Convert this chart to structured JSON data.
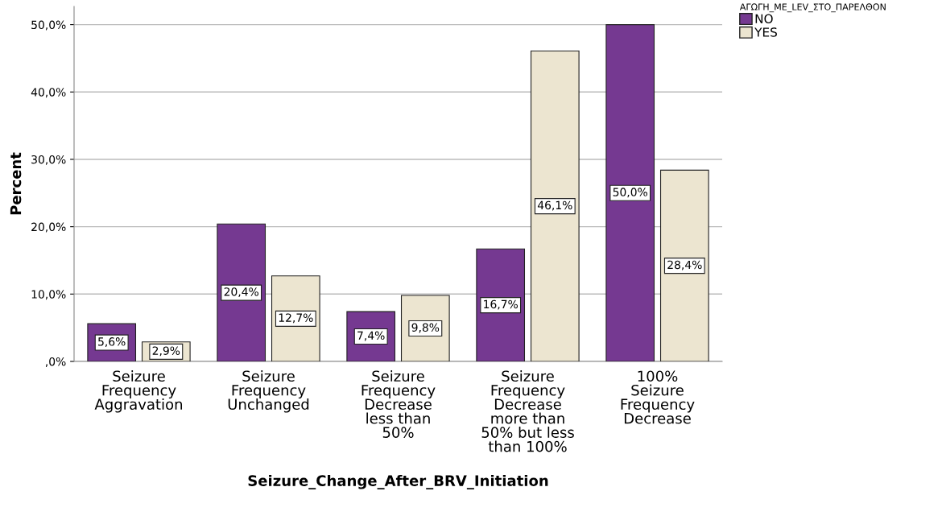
{
  "chart_data": {
    "type": "bar",
    "xlabel": "Seizure_Change_After_BRV_Initiation",
    "ylabel": "Percent",
    "legend_title": "ΑΓΩΓΗ_ΜΕ_LEV_ΣΤΟ_ΠΑΡΕΛΘΟΝ",
    "categories": [
      "Seizure\nFrequency\nAggravation",
      "Seizure\nFrequency\nUnchanged",
      "Seizure\nFrequency\nDecrease\nless than\n50%",
      "Seizure\nFrequency\nDecrease\nmore than\n50% but less\nthan 100%",
      "100%\nSeizure\nFrequency\nDecrease"
    ],
    "series": [
      {
        "name": "NO",
        "color": "#753991",
        "values": [
          5.6,
          20.4,
          7.4,
          16.7,
          50.0
        ],
        "value_labels": [
          "5,6%",
          "20,4%",
          "7,4%",
          "16,7%",
          "50,0%"
        ]
      },
      {
        "name": "YES",
        "color": "#ece5d0",
        "values": [
          2.9,
          12.7,
          9.8,
          46.1,
          28.4
        ],
        "value_labels": [
          "2,9%",
          "12,7%",
          "9,8%",
          "46,1%",
          "28,4%"
        ]
      }
    ],
    "ylim": [
      0,
      52.7
    ],
    "yticks": [
      {
        "value": 0,
        "label": ",0%"
      },
      {
        "value": 10,
        "label": "10,0%"
      },
      {
        "value": 20,
        "label": "20,0%"
      },
      {
        "value": 30,
        "label": "30,0%"
      },
      {
        "value": 40,
        "label": "40,0%"
      },
      {
        "value": 50,
        "label": "50,0%"
      }
    ],
    "grid": "y",
    "legend": "top right"
  }
}
